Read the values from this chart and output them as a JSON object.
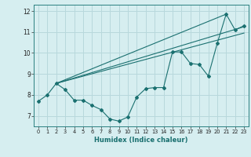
{
  "xlabel": "Humidex (Indice chaleur)",
  "background_color": "#d6eef0",
  "grid_color": "#b8d8dc",
  "line_color": "#1a7070",
  "xlim": [
    -0.5,
    23.5
  ],
  "ylim": [
    6.5,
    12.3
  ],
  "yticks": [
    7,
    8,
    9,
    10,
    11,
    12
  ],
  "xticks": [
    0,
    1,
    2,
    3,
    4,
    5,
    6,
    7,
    8,
    9,
    10,
    11,
    12,
    13,
    14,
    15,
    16,
    17,
    18,
    19,
    20,
    21,
    22,
    23
  ],
  "line1_x": [
    0,
    1,
    2,
    3,
    4,
    5,
    6,
    7,
    8,
    9,
    10,
    11,
    12,
    13,
    14,
    15,
    16,
    17,
    18,
    19,
    20,
    21,
    22,
    23
  ],
  "line1_y": [
    7.7,
    8.0,
    8.55,
    8.25,
    7.75,
    7.75,
    7.5,
    7.3,
    6.85,
    6.75,
    6.95,
    7.9,
    8.3,
    8.35,
    8.35,
    10.05,
    10.05,
    9.5,
    9.45,
    8.9,
    10.45,
    11.85,
    11.1,
    11.3
  ],
  "line2_x": [
    2,
    23
  ],
  "line2_y": [
    8.55,
    11.25
  ],
  "line3_x": [
    2,
    21
  ],
  "line3_y": [
    8.55,
    11.85
  ],
  "line4_x": [
    2,
    23
  ],
  "line4_y": [
    8.55,
    10.95
  ]
}
